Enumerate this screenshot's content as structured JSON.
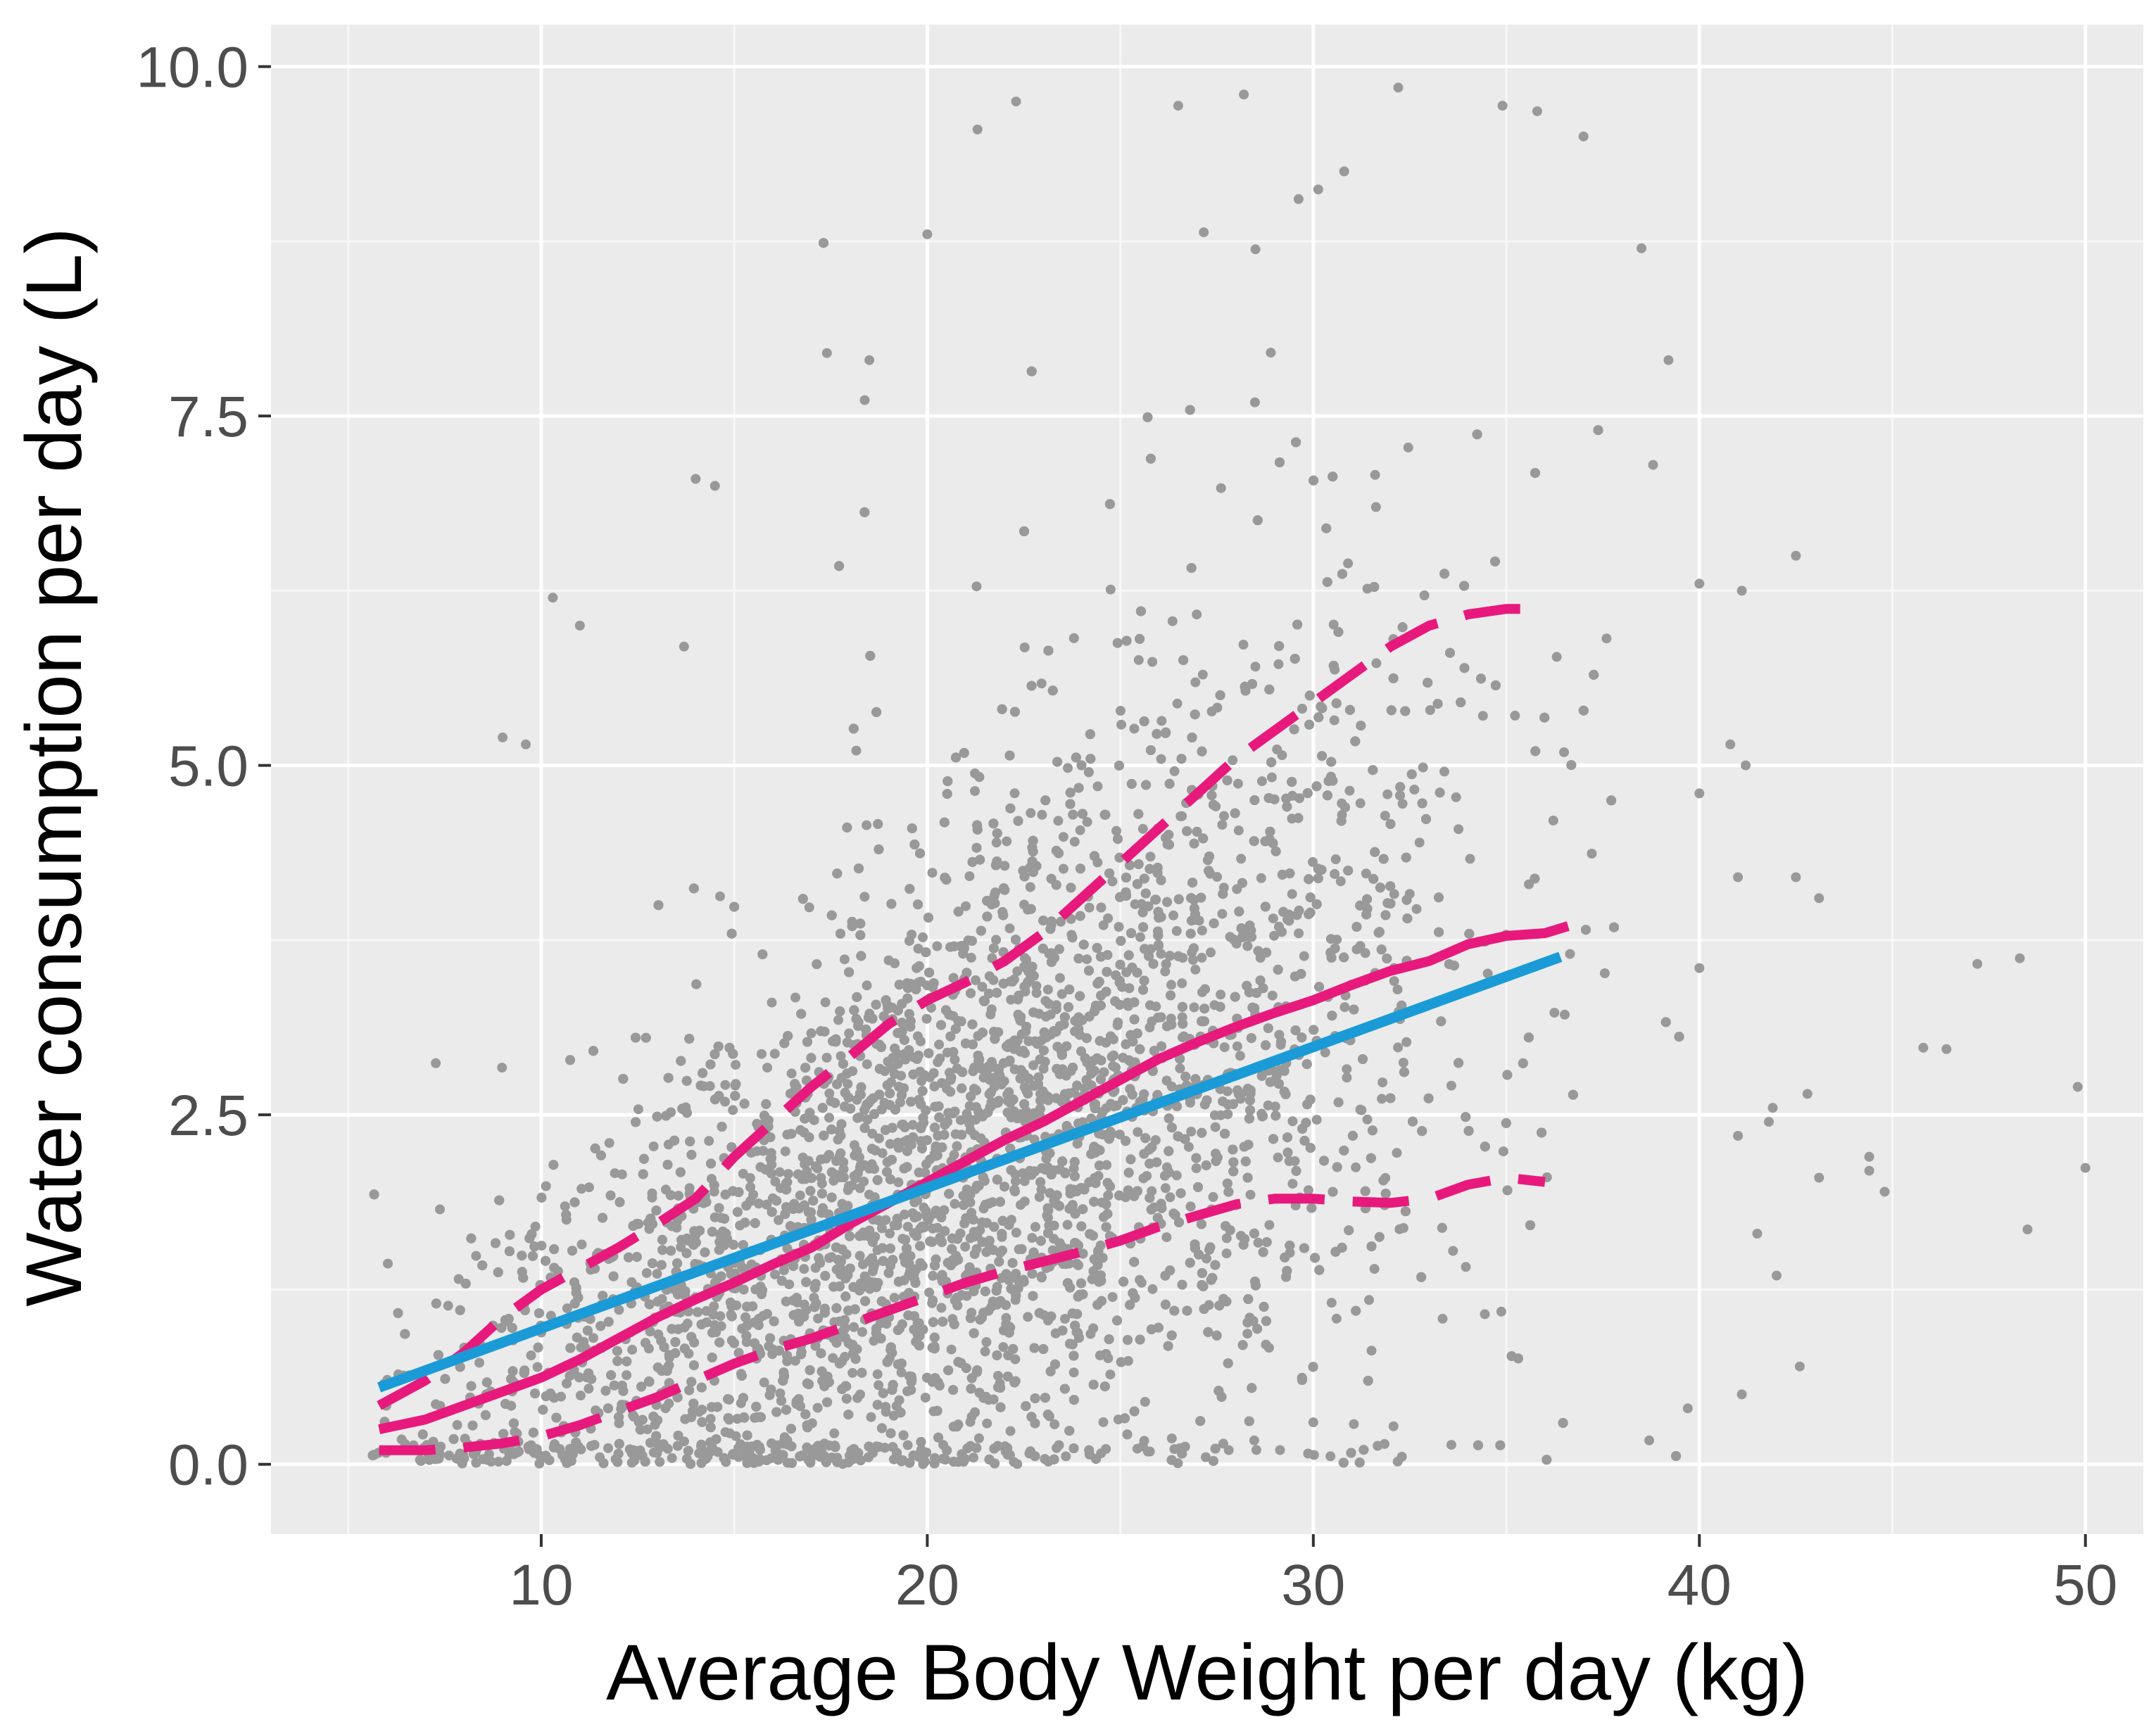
{
  "chart_data": {
    "type": "scatter",
    "title": "",
    "xlabel": "Average Body Weight per day (kg)",
    "ylabel": "Water consumption per day (L)",
    "xlim": [
      3.0,
      51.5
    ],
    "ylim": [
      -0.5,
      10.3
    ],
    "x_ticks": [
      10,
      20,
      30,
      40,
      50
    ],
    "x_tick_labels": [
      "10",
      "20",
      "30",
      "40",
      "50"
    ],
    "y_ticks": [
      0.0,
      2.5,
      5.0,
      7.5,
      10.0
    ],
    "y_tick_labels": [
      "0.0",
      "2.5",
      "5.0",
      "7.5",
      "10.0"
    ],
    "grid": true,
    "colors": {
      "panel_background": "#ebebeb",
      "grid_major": "#ffffff",
      "points": "#999999",
      "linear_fit": "#1a9bd7",
      "median": "#e8197d",
      "quantile_bands": "#e8197d"
    },
    "scatter_description": {
      "approx_n_points": 20000,
      "x_range": [
        5.5,
        50
      ],
      "y_range": [
        0,
        9.9
      ],
      "note": "dense cloud of individual observations"
    },
    "series": [
      {
        "name": "Linear fit",
        "style": "solid",
        "color": "#1a9bd7",
        "x": [
          5.8,
          36.4
        ],
        "y": [
          0.55,
          3.63
        ]
      },
      {
        "name": "Median",
        "style": "solid",
        "color": "#e8197d",
        "x": [
          5.8,
          7,
          8,
          9,
          10,
          11,
          12,
          13,
          14,
          15,
          16,
          17,
          18,
          19,
          20,
          21,
          22,
          23,
          24,
          25,
          26,
          27,
          28,
          29,
          30,
          31,
          32,
          33,
          34,
          35,
          36,
          36.6
        ],
        "y": [
          0.25,
          0.32,
          0.42,
          0.52,
          0.62,
          0.75,
          0.9,
          1.05,
          1.18,
          1.3,
          1.43,
          1.55,
          1.72,
          1.87,
          2.02,
          2.17,
          2.32,
          2.45,
          2.6,
          2.75,
          2.9,
          3.02,
          3.13,
          3.23,
          3.32,
          3.43,
          3.53,
          3.6,
          3.72,
          3.78,
          3.8,
          3.85
        ]
      },
      {
        "name": "Upper quantile",
        "style": "dashed",
        "color": "#e8197d",
        "x": [
          5.8,
          7,
          8,
          9,
          10,
          11,
          12,
          13,
          14,
          15,
          16,
          17,
          18,
          19,
          20,
          21,
          22,
          23,
          24,
          25,
          26,
          27,
          28,
          29,
          30,
          31,
          32,
          33,
          34,
          35,
          35.5,
          36
        ],
        "y": [
          0.42,
          0.6,
          0.8,
          1.05,
          1.25,
          1.4,
          1.55,
          1.72,
          1.9,
          2.2,
          2.45,
          2.7,
          2.92,
          3.15,
          3.32,
          3.45,
          3.6,
          3.8,
          4.05,
          4.3,
          4.55,
          4.8,
          5.05,
          5.25,
          5.45,
          5.65,
          5.85,
          6.0,
          6.08,
          6.12,
          6.12,
          6.05
        ]
      },
      {
        "name": "Lower quantile",
        "style": "dashed",
        "color": "#e8197d",
        "x": [
          5.8,
          7,
          8,
          9,
          10,
          11,
          12,
          13,
          14,
          15,
          16,
          17,
          18,
          19,
          20,
          21,
          22,
          23,
          24,
          25,
          26,
          27,
          28,
          29,
          30,
          31,
          32,
          33,
          34,
          35,
          36
        ],
        "y": [
          0.1,
          0.1,
          0.12,
          0.15,
          0.2,
          0.28,
          0.38,
          0.48,
          0.6,
          0.72,
          0.82,
          0.9,
          1.0,
          1.1,
          1.2,
          1.3,
          1.38,
          1.45,
          1.52,
          1.6,
          1.7,
          1.78,
          1.86,
          1.9,
          1.9,
          1.88,
          1.87,
          1.9,
          2.0,
          2.05,
          2.02
        ]
      }
    ],
    "outlier_points": [
      {
        "x": 22.3,
        "y": 9.75
      },
      {
        "x": 28.2,
        "y": 9.8
      },
      {
        "x": 32.2,
        "y": 9.85
      },
      {
        "x": 26.5,
        "y": 9.72
      },
      {
        "x": 30.8,
        "y": 9.25
      },
      {
        "x": 34.9,
        "y": 9.72
      },
      {
        "x": 35.8,
        "y": 9.68
      },
      {
        "x": 37.0,
        "y": 9.5
      },
      {
        "x": 21.3,
        "y": 9.55
      },
      {
        "x": 20.0,
        "y": 8.8
      },
      {
        "x": 38.5,
        "y": 8.7
      },
      {
        "x": 39.2,
        "y": 7.9
      },
      {
        "x": 38.8,
        "y": 7.15
      },
      {
        "x": 40.0,
        "y": 6.3
      },
      {
        "x": 41.1,
        "y": 6.25
      },
      {
        "x": 42.5,
        "y": 6.5
      },
      {
        "x": 40.8,
        "y": 5.15
      },
      {
        "x": 41.2,
        "y": 5.0
      },
      {
        "x": 40.0,
        "y": 4.8
      },
      {
        "x": 41.0,
        "y": 4.2
      },
      {
        "x": 42.5,
        "y": 4.2
      },
      {
        "x": 43.1,
        "y": 4.05
      },
      {
        "x": 40.0,
        "y": 3.55
      },
      {
        "x": 47.2,
        "y": 3.58
      },
      {
        "x": 48.3,
        "y": 3.62
      },
      {
        "x": 45.8,
        "y": 2.98
      },
      {
        "x": 46.4,
        "y": 2.97
      },
      {
        "x": 49.8,
        "y": 2.7
      },
      {
        "x": 42.8,
        "y": 2.65
      },
      {
        "x": 41.9,
        "y": 2.55
      },
      {
        "x": 41.8,
        "y": 2.45
      },
      {
        "x": 44.4,
        "y": 2.2
      },
      {
        "x": 44.4,
        "y": 2.1
      },
      {
        "x": 43.1,
        "y": 2.05
      },
      {
        "x": 41.0,
        "y": 2.35
      },
      {
        "x": 41.5,
        "y": 1.65
      },
      {
        "x": 44.8,
        "y": 1.95
      },
      {
        "x": 48.5,
        "y": 1.68
      },
      {
        "x": 50.0,
        "y": 2.12
      },
      {
        "x": 42.0,
        "y": 1.35
      },
      {
        "x": 41.1,
        "y": 0.5
      },
      {
        "x": 42.6,
        "y": 0.7
      },
      {
        "x": 39.7,
        "y": 0.4
      },
      {
        "x": 30.0,
        "y": 0.3
      },
      {
        "x": 19.9,
        "y": 0.05
      },
      {
        "x": 14.0,
        "y": 7.05
      },
      {
        "x": 14.5,
        "y": 7.0
      },
      {
        "x": 17.4,
        "y": 7.95
      },
      {
        "x": 18.5,
        "y": 7.9
      },
      {
        "x": 10.3,
        "y": 6.2
      },
      {
        "x": 11.0,
        "y": 6.0
      },
      {
        "x": 13.7,
        "y": 5.85
      },
      {
        "x": 9.0,
        "y": 5.2
      },
      {
        "x": 9.6,
        "y": 5.15
      }
    ]
  }
}
